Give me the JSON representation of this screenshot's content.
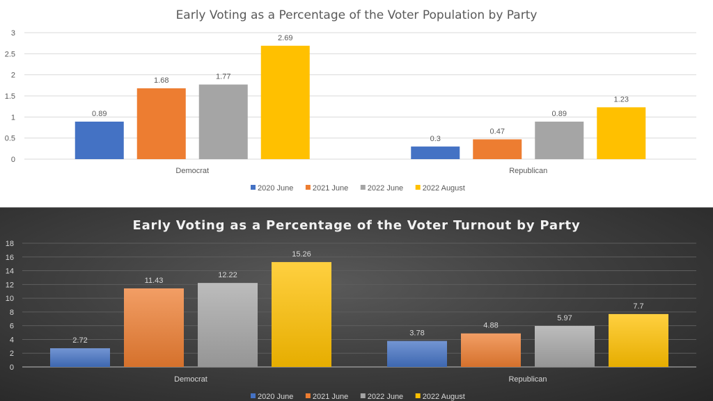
{
  "chart_data": [
    {
      "type": "bar",
      "title": "Early Voting as a Percentage of the Voter Population by Party",
      "xlabel": "",
      "ylabel": "",
      "categories": [
        "Democrat",
        "Republican"
      ],
      "series": [
        {
          "name": "2020 June",
          "color": "#4472C4",
          "values": [
            0.89,
            0.3
          ]
        },
        {
          "name": "2021 June",
          "color": "#ED7D31",
          "values": [
            1.68,
            0.47
          ]
        },
        {
          "name": "2022 June",
          "color": "#A5A5A5",
          "values": [
            1.77,
            0.89
          ]
        },
        {
          "name": "2022 August",
          "color": "#FFC000",
          "values": [
            2.69,
            1.23
          ]
        }
      ],
      "data_labels": [
        [
          "0.89",
          "0.3"
        ],
        [
          "1.68",
          "0.47"
        ],
        [
          "1.77",
          "0.89"
        ],
        [
          "2.69",
          "1.23"
        ]
      ],
      "ylim": [
        0,
        3
      ],
      "yticks": [
        "0",
        "0.5",
        "1",
        "1.5",
        "2",
        "2.5",
        "3"
      ],
      "grid": true,
      "legend_position": "bottom",
      "theme": "light"
    },
    {
      "type": "bar",
      "title": "Early Voting as a Percentage of the Voter Turnout by Party",
      "xlabel": "",
      "ylabel": "",
      "categories": [
        "Democrat",
        "Republican"
      ],
      "series": [
        {
          "name": "2020 June",
          "color": "#4472C4",
          "values": [
            2.72,
            3.78
          ]
        },
        {
          "name": "2021 June",
          "color": "#ED7D31",
          "values": [
            11.43,
            4.88
          ]
        },
        {
          "name": "2022 June",
          "color": "#A5A5A5",
          "values": [
            12.22,
            5.97
          ]
        },
        {
          "name": "2022 August",
          "color": "#FFC000",
          "values": [
            15.26,
            7.7
          ]
        }
      ],
      "data_labels": [
        [
          "2.72",
          "3.78"
        ],
        [
          "11.43",
          "4.88"
        ],
        [
          "12.22",
          "5.97"
        ],
        [
          "15.26",
          "7.7"
        ]
      ],
      "ylim": [
        0,
        18
      ],
      "yticks": [
        "0",
        "2",
        "4",
        "6",
        "8",
        "10",
        "12",
        "14",
        "16",
        "18"
      ],
      "grid": true,
      "legend_position": "bottom",
      "theme": "dark"
    }
  ]
}
